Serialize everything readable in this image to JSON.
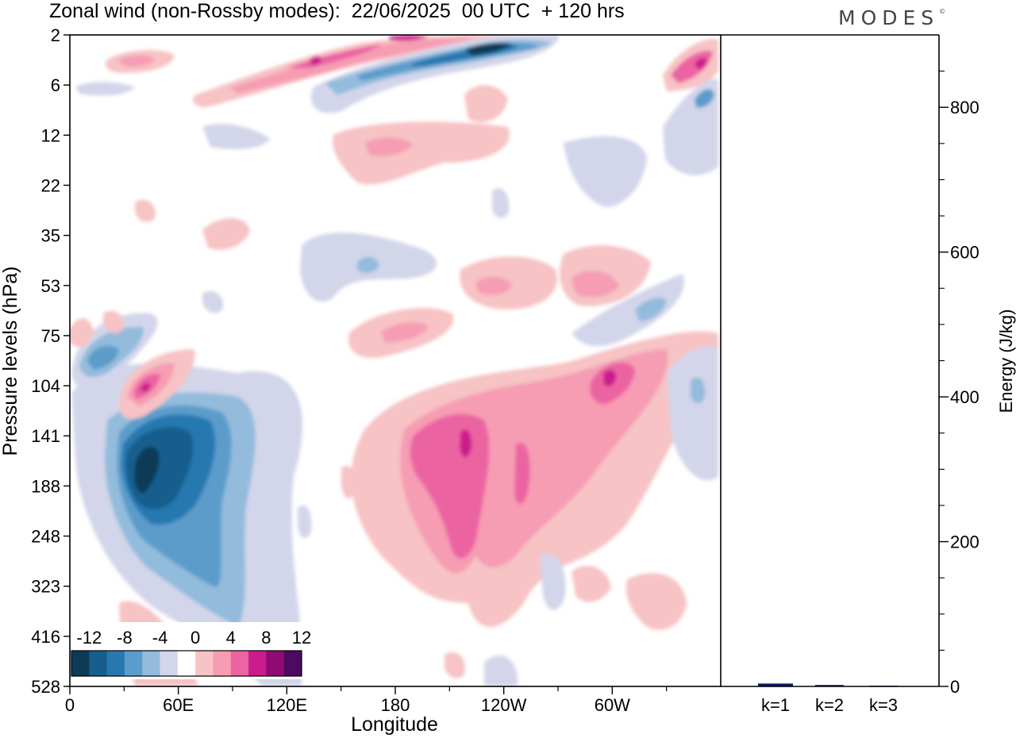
{
  "title": "Zonal wind (non-Rossby modes):  22/06/2025  00 UTC  + 120 hrs",
  "logo": "MODES",
  "chart_data": [
    {
      "type": "heatmap",
      "title": "Zonal wind (non-Rossby modes):  22/06/2025  00 UTC  + 120 hrs",
      "xlabel": "Longitude",
      "ylabel": "Pressure levels (hPa)",
      "x_ticks": [
        "0",
        "60E",
        "120E",
        "180",
        "120W",
        "60W"
      ],
      "x_tick_degrees": [
        0,
        60,
        120,
        180,
        240,
        300
      ],
      "xlim": [
        0,
        360
      ],
      "y_ticks": [
        "2",
        "6",
        "12",
        "22",
        "35",
        "53",
        "75",
        "104",
        "141",
        "188",
        "248",
        "323",
        "416",
        "528"
      ],
      "colorbar": {
        "tick_labels": [
          "-12",
          "-8",
          "-4",
          "0",
          "4",
          "8",
          "12"
        ],
        "levels": [
          -14,
          -12,
          -10,
          -8,
          -6,
          -4,
          -2,
          2,
          4,
          6,
          8,
          10,
          12,
          14
        ],
        "colors": [
          "#0d3a57",
          "#175e8d",
          "#2878b0",
          "#5b9ccb",
          "#93bbdc",
          "#d3d5ea",
          "#ffffff",
          "#f7c3c4",
          "#f69cb3",
          "#ec64a2",
          "#cc1b8c",
          "#8f0a72",
          "#4d0a60"
        ]
      },
      "features": [
        {
          "region": "strong easterly jet near 40E–60E, 141–248 hPa",
          "value": -14
        },
        {
          "region": "westerly band 180–120W, 141–323 hPa",
          "value": 10
        },
        {
          "region": "upper easterly jet 110W–120W, 2–6 hPa",
          "value": -14
        },
        {
          "region": "westerly maximum near 60W, 104 hPa",
          "value": 10
        }
      ]
    },
    {
      "type": "bar",
      "categories": [
        "k=1",
        "k=2",
        "k=3"
      ],
      "values": [
        4,
        2,
        1
      ],
      "ylabel": "Energy (J/kg)",
      "y_ticks": [
        "0",
        "200",
        "400",
        "600",
        "800"
      ],
      "ylim": [
        0,
        900
      ],
      "bar_color": "#0b1a6e"
    }
  ]
}
